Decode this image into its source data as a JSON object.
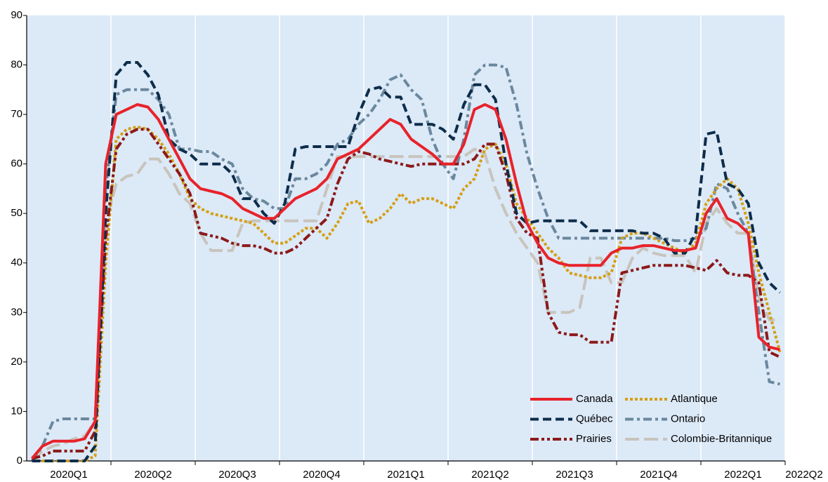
{
  "chart_data": {
    "type": "line",
    "xticks": [
      "2020Q1",
      "2020Q2",
      "2020Q3",
      "2020Q4",
      "2021Q1",
      "2021Q2",
      "2021Q3",
      "2021Q4",
      "2022Q1",
      "2022Q2"
    ],
    "ylim": [
      0,
      90
    ],
    "yticks": [
      0,
      10,
      20,
      30,
      40,
      50,
      60,
      70,
      80,
      90
    ],
    "grid": true,
    "legend": "lower right",
    "series": [
      {
        "name": "Canada",
        "color": "#e8222a",
        "style": "solid",
        "values": [
          0.5,
          3,
          4,
          4,
          4,
          4.5,
          8,
          60,
          70,
          71,
          72,
          71.5,
          69,
          65,
          61,
          57,
          55,
          54.5,
          54,
          53,
          51,
          50,
          49,
          49,
          51,
          53,
          54,
          55,
          57,
          61,
          62,
          63,
          65,
          67,
          69,
          68,
          65,
          63.5,
          62,
          60,
          60,
          64,
          71,
          72,
          71,
          65,
          56,
          48,
          44,
          41,
          40,
          39.5,
          39.5,
          39.5,
          39.5,
          42,
          43,
          43,
          43.5,
          43.5,
          43,
          42.5,
          42.5,
          43,
          50,
          53,
          49,
          48,
          46,
          25,
          23,
          22.5
        ]
      },
      {
        "name": "Québec",
        "color": "#0d2d4a",
        "style": "dashed",
        "values": [
          0,
          0,
          0,
          0,
          0,
          0,
          3,
          50,
          78,
          80.5,
          80.5,
          78,
          74,
          65,
          63,
          62,
          60,
          60,
          60,
          58,
          53,
          53,
          50,
          48,
          52,
          63,
          63.5,
          63.5,
          63.5,
          63.5,
          63.5,
          70,
          75,
          75.5,
          73.5,
          73.5,
          68,
          68,
          68,
          67,
          65,
          72,
          76,
          76,
          73,
          60,
          50,
          48,
          48.5,
          48.5,
          48.5,
          48.5,
          48.5,
          46.5,
          46.5,
          46.5,
          46.5,
          46.5,
          46,
          46,
          45,
          42,
          42,
          46,
          66,
          66.5,
          56,
          55,
          52,
          40,
          36,
          34
        ]
      },
      {
        "name": "Prairies",
        "color": "#8b1a1a",
        "style": "dashdotdot",
        "values": [
          0.5,
          1,
          2,
          2,
          2,
          2,
          6,
          45,
          63,
          66,
          67,
          67,
          64,
          61,
          58,
          54,
          46,
          45.5,
          45,
          44,
          43.5,
          43.5,
          43,
          42,
          42,
          43,
          45,
          47,
          49,
          56,
          61,
          62.5,
          62,
          61,
          60.5,
          60,
          59.5,
          60,
          60,
          60,
          60,
          60,
          61,
          64,
          64,
          58,
          49,
          46,
          45,
          30,
          26,
          25.5,
          25.5,
          24,
          24,
          24,
          38,
          38.5,
          39,
          39.5,
          39.5,
          39.5,
          39.5,
          39,
          38.5,
          40.5,
          38,
          37.5,
          37.5,
          36,
          22,
          21
        ]
      },
      {
        "name": "Atlantique",
        "color": "#d4a017",
        "style": "dotted",
        "values": [
          0,
          0,
          0,
          0,
          0,
          0,
          1,
          40,
          65,
          67,
          67.5,
          67,
          65,
          62,
          58,
          53,
          51,
          50,
          49.5,
          49,
          48.5,
          48,
          46,
          44,
          44,
          45.5,
          47,
          47,
          45,
          48,
          52,
          52.5,
          48,
          49,
          51,
          54,
          52,
          53,
          53,
          52,
          51,
          55,
          57,
          63,
          64,
          60,
          52,
          49,
          46,
          43,
          41,
          38,
          37.5,
          37,
          37,
          38,
          45,
          46,
          46,
          45,
          44,
          43,
          42,
          44,
          52,
          55,
          57,
          55,
          48,
          38,
          30,
          22
        ]
      },
      {
        "name": "Ontario",
        "color": "#6a889e",
        "style": "dashdot",
        "values": [
          0,
          3,
          8,
          8.5,
          8.5,
          8.5,
          8.5,
          55,
          74,
          75,
          75,
          75,
          73,
          70,
          63,
          63,
          62.5,
          62.5,
          61,
          60,
          55,
          53,
          52.5,
          51,
          51,
          57,
          57,
          58,
          60,
          64,
          65,
          68,
          70,
          73,
          77,
          78,
          75,
          73,
          65,
          60,
          57,
          65,
          78,
          80,
          80,
          79.5,
          72,
          62,
          55,
          49,
          45,
          45,
          45,
          45,
          45,
          45,
          45,
          45,
          45,
          45,
          45,
          44.5,
          44.5,
          45,
          47,
          56,
          55,
          50,
          46,
          30,
          16,
          15.5
        ]
      },
      {
        "name": "Colombie-Britannique",
        "color": "#c8c4bc",
        "style": "longdash",
        "values": [
          0,
          2,
          3,
          3.5,
          4.5,
          5,
          8,
          48,
          56,
          57.5,
          58,
          61,
          61,
          58,
          54,
          52,
          46,
          42.5,
          42.5,
          42.5,
          48,
          48.5,
          48.5,
          48.5,
          48.5,
          48.5,
          48.5,
          48.5,
          55,
          61.5,
          61.5,
          61.5,
          61.5,
          61.5,
          61.5,
          61.5,
          61.5,
          61.5,
          61.5,
          61.5,
          61.5,
          61.5,
          63,
          62,
          55,
          50,
          46,
          43,
          40,
          30,
          30,
          30,
          31,
          41,
          41,
          36,
          36,
          41,
          43,
          42,
          41.5,
          41.5,
          41.5,
          38,
          48,
          51,
          48,
          46,
          46,
          33,
          28.5,
          28.5
        ]
      }
    ]
  }
}
